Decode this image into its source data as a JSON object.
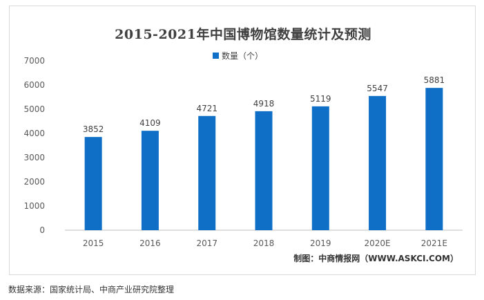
{
  "chart_data": {
    "type": "bar",
    "title": "2015-2021年中国博物馆数量统计及预测",
    "categories": [
      "2015",
      "2016",
      "2017",
      "2018",
      "2019",
      "2020E",
      "2021E"
    ],
    "series": [
      {
        "name": "数量（个）",
        "values": [
          3852,
          4109,
          4721,
          4918,
          5119,
          5547,
          5881
        ]
      }
    ],
    "data_labels": [
      "3852",
      "4109",
      "4721",
      "4918",
      "5119",
      "5547",
      "5881"
    ],
    "ylim": [
      0,
      7000
    ],
    "yticks": [
      0,
      1000,
      2000,
      3000,
      4000,
      5000,
      6000,
      7000
    ],
    "grid": false,
    "legend_position": "top-center",
    "bar_color": "#0f6fc6"
  },
  "credit": "制图：中商情报网（WWW.ASKCI.COM）",
  "footnote": "数据来源：国家统计局、中商产业研究院整理"
}
